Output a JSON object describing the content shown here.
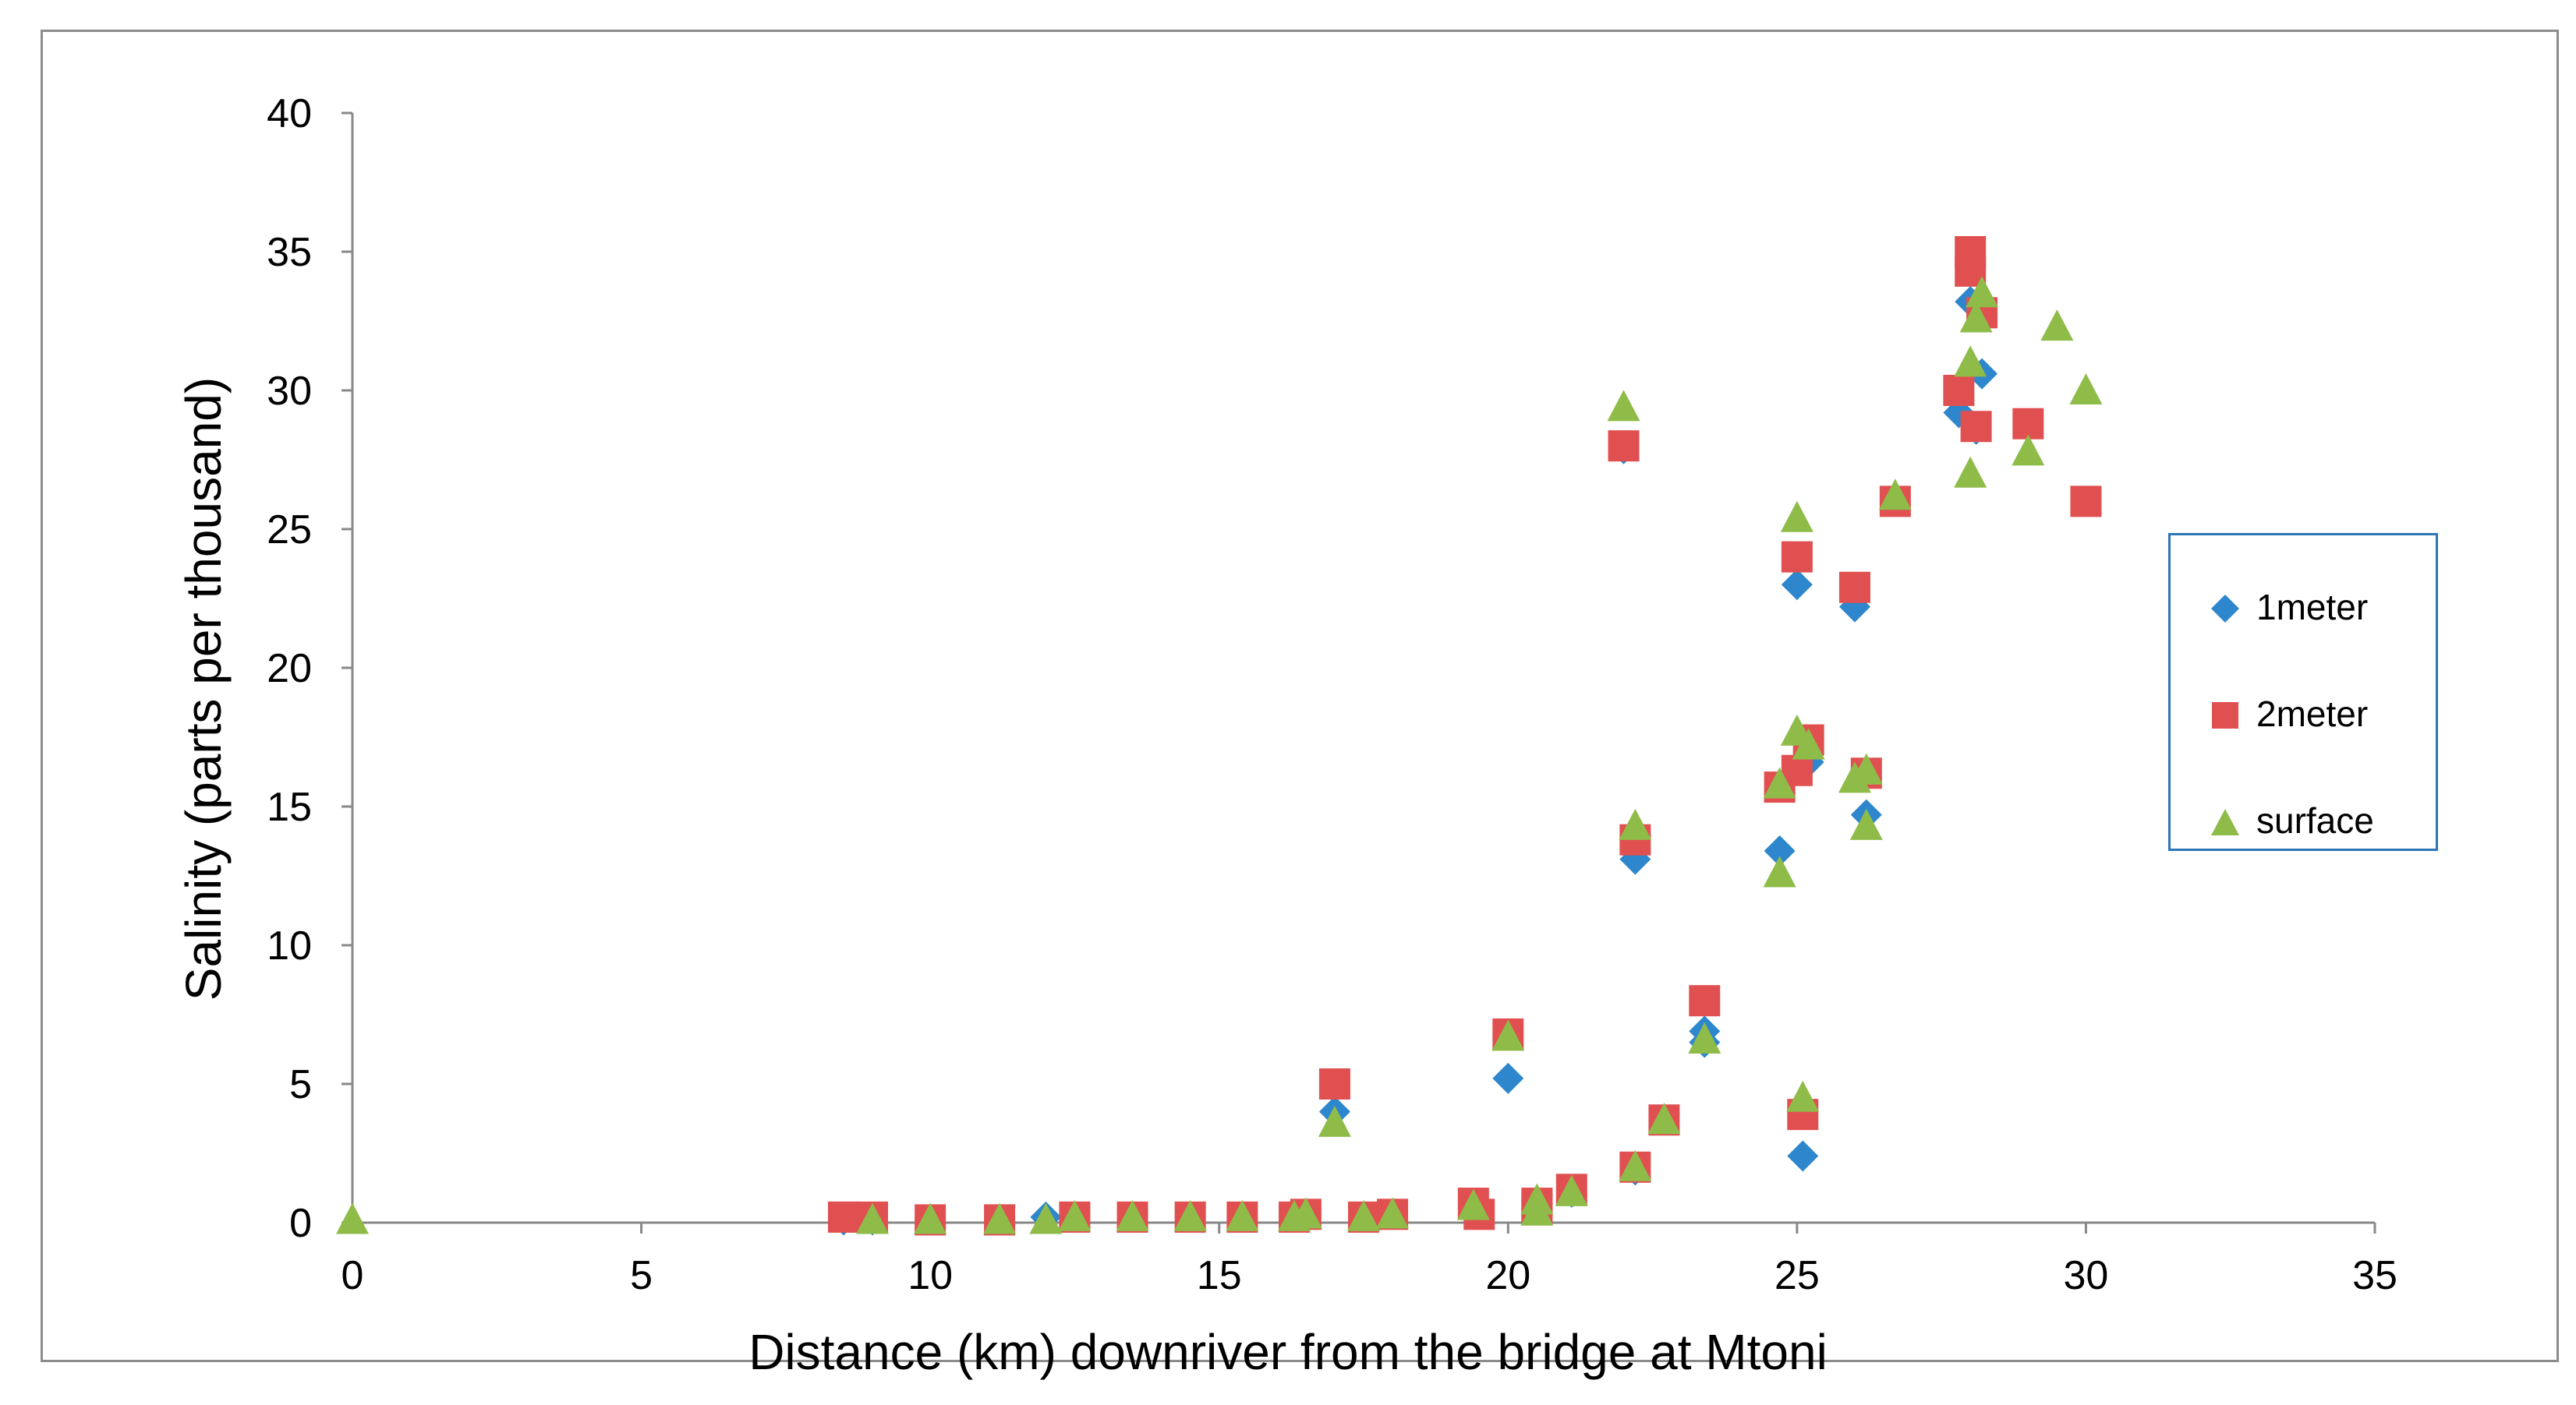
{
  "chart_data": {
    "type": "scatter",
    "xlabel": "Distance (km) downriver from the bridge at Mtoni",
    "ylabel": "Salinity (parts per thousand)",
    "xlim": [
      0,
      35
    ],
    "ylim": [
      0,
      40
    ],
    "x_ticks": [
      0,
      5,
      10,
      15,
      20,
      25,
      30,
      35
    ],
    "y_ticks": [
      0,
      5,
      10,
      15,
      20,
      25,
      30,
      35,
      40
    ],
    "grid": false,
    "legend_position": "right",
    "series": [
      {
        "name": "1meter",
        "marker": "diamond",
        "color": "#2e87cc",
        "points": [
          [
            8.5,
            0.1
          ],
          [
            9,
            0.1
          ],
          [
            10,
            0.1
          ],
          [
            11.2,
            0.1
          ],
          [
            12,
            0.2
          ],
          [
            12.5,
            0.2
          ],
          [
            13.5,
            0.2
          ],
          [
            14.5,
            0.2
          ],
          [
            15.4,
            0.2
          ],
          [
            16.3,
            0.3
          ],
          [
            16.5,
            0.3
          ],
          [
            17,
            4.0
          ],
          [
            17.5,
            0.2
          ],
          [
            18,
            0.3
          ],
          [
            19.4,
            0.6
          ],
          [
            19.5,
            0.3
          ],
          [
            20,
            5.2
          ],
          [
            20,
            6.8
          ],
          [
            20.5,
            0.5
          ],
          [
            20.5,
            0.7
          ],
          [
            21.1,
            1.1
          ],
          [
            22,
            27.9
          ],
          [
            22.2,
            13.1
          ],
          [
            22.2,
            1.9
          ],
          [
            22.7,
            3.7
          ],
          [
            23.4,
            6.5
          ],
          [
            23.4,
            6.9
          ],
          [
            24.7,
            13.4
          ],
          [
            25,
            23.0
          ],
          [
            25,
            16.3
          ],
          [
            25.1,
            2.4
          ],
          [
            25.2,
            16.6
          ],
          [
            26,
            22.2
          ],
          [
            26.2,
            14.7
          ],
          [
            26.2,
            16.1
          ],
          [
            26.7,
            26.0
          ],
          [
            27.8,
            29.2
          ],
          [
            28,
            33.2
          ],
          [
            28.1,
            28.6
          ],
          [
            28.2,
            30.6
          ],
          [
            29,
            28.8
          ],
          [
            30,
            26.0
          ]
        ]
      },
      {
        "name": "2meter",
        "marker": "square",
        "color": "#e05050",
        "points": [
          [
            8.5,
            0.2
          ],
          [
            9,
            0.2
          ],
          [
            10,
            0.1
          ],
          [
            11.2,
            0.1
          ],
          [
            12.5,
            0.2
          ],
          [
            13.5,
            0.2
          ],
          [
            14.5,
            0.2
          ],
          [
            15.4,
            0.2
          ],
          [
            16.3,
            0.2
          ],
          [
            16.5,
            0.3
          ],
          [
            17,
            5.0
          ],
          [
            17.5,
            0.2
          ],
          [
            18,
            0.3
          ],
          [
            19.4,
            0.7
          ],
          [
            19.5,
            0.3
          ],
          [
            20,
            6.8
          ],
          [
            20.5,
            0.5
          ],
          [
            20.5,
            0.7
          ],
          [
            21.1,
            1.2
          ],
          [
            22,
            28.0
          ],
          [
            22.2,
            13.8
          ],
          [
            22.2,
            2.0
          ],
          [
            22.7,
            3.7
          ],
          [
            23.4,
            8.0
          ],
          [
            24.7,
            15.7
          ],
          [
            25,
            24.0
          ],
          [
            25,
            16.3
          ],
          [
            25.1,
            3.9
          ],
          [
            25.2,
            17.4
          ],
          [
            26,
            22.9
          ],
          [
            26.2,
            16.2
          ],
          [
            26.7,
            26.0
          ],
          [
            27.8,
            30.0
          ],
          [
            28,
            35.0
          ],
          [
            28,
            34.3
          ],
          [
            28.1,
            28.7
          ],
          [
            28.2,
            32.8
          ],
          [
            29,
            28.8
          ],
          [
            30,
            26.0
          ]
        ]
      },
      {
        "name": "surface",
        "marker": "triangle",
        "color": "#8fbc49",
        "points": [
          [
            0,
            0.1
          ],
          [
            9,
            0.1
          ],
          [
            10,
            0.1
          ],
          [
            11.2,
            0.1
          ],
          [
            12,
            0.1
          ],
          [
            12.5,
            0.2
          ],
          [
            13.5,
            0.2
          ],
          [
            14.5,
            0.2
          ],
          [
            15.4,
            0.2
          ],
          [
            16.3,
            0.2
          ],
          [
            16.5,
            0.3
          ],
          [
            17,
            3.6
          ],
          [
            17.5,
            0.2
          ],
          [
            18,
            0.3
          ],
          [
            19.4,
            0.6
          ],
          [
            20,
            6.7
          ],
          [
            20.5,
            0.4
          ],
          [
            20.5,
            0.8
          ],
          [
            21.1,
            1.1
          ],
          [
            22,
            29.4
          ],
          [
            22.2,
            14.3
          ],
          [
            22.2,
            2.0
          ],
          [
            22.7,
            3.7
          ],
          [
            23.4,
            6.6
          ],
          [
            24.7,
            12.6
          ],
          [
            24.7,
            15.8
          ],
          [
            25,
            25.4
          ],
          [
            25,
            17.7
          ],
          [
            25.1,
            4.5
          ],
          [
            25.2,
            17.2
          ],
          [
            26,
            16.0
          ],
          [
            26.2,
            16.3
          ],
          [
            26.2,
            14.3
          ],
          [
            26.7,
            26.2
          ],
          [
            28,
            31.0
          ],
          [
            28,
            27.0
          ],
          [
            28.1,
            32.6
          ],
          [
            28.2,
            33.5
          ],
          [
            29,
            27.8
          ],
          [
            29.5,
            32.3
          ],
          [
            30,
            30.0
          ]
        ]
      }
    ]
  }
}
